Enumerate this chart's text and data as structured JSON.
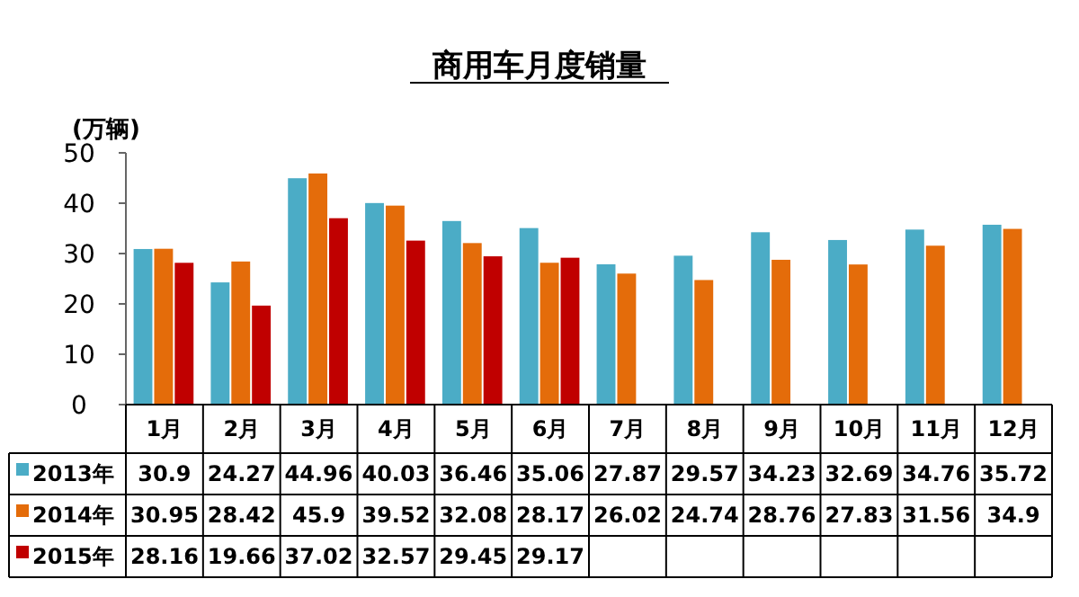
{
  "chart_data": {
    "type": "bar",
    "title": "商用车月度销量",
    "ylabel": "(万辆)",
    "categories": [
      "1月",
      "2月",
      "3月",
      "4月",
      "5月",
      "6月",
      "7月",
      "8月",
      "9月",
      "10月",
      "11月",
      "12月"
    ],
    "series": [
      {
        "name": "2013年",
        "color": "#4bacc6",
        "values": [
          30.9,
          24.27,
          44.96,
          40.03,
          36.46,
          35.06,
          27.87,
          29.57,
          34.23,
          32.69,
          34.76,
          35.72
        ]
      },
      {
        "name": "2014年",
        "color": "#e46c0a",
        "values": [
          30.95,
          28.42,
          45.9,
          39.52,
          32.08,
          28.17,
          26.02,
          24.74,
          28.76,
          27.83,
          31.56,
          34.9
        ]
      },
      {
        "name": "2015年",
        "color": "#c00000",
        "values": [
          28.16,
          19.66,
          37.02,
          32.57,
          29.45,
          29.17,
          null,
          null,
          null,
          null,
          null,
          null
        ]
      }
    ],
    "ylim": [
      0,
      50
    ],
    "yticks": [
      0,
      10,
      20,
      30,
      40,
      50
    ],
    "grid": false,
    "legend": "bottom",
    "data_labels": true
  }
}
